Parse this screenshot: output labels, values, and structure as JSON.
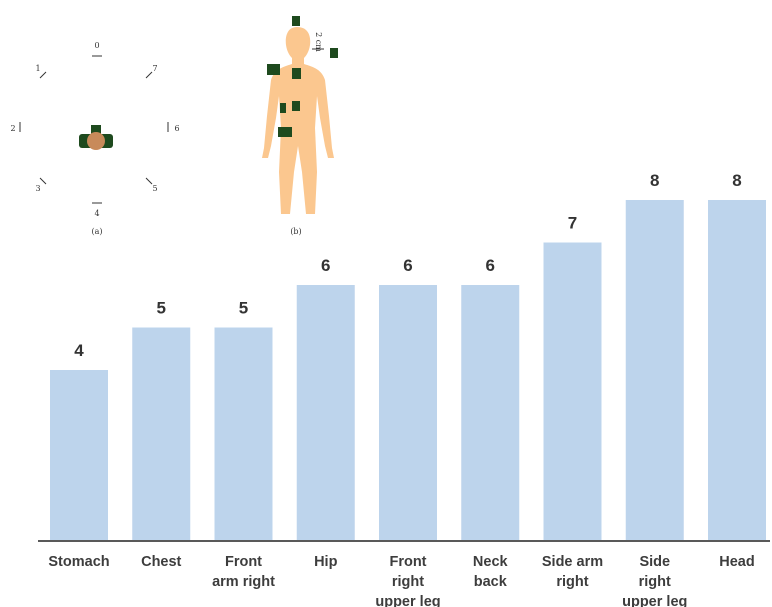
{
  "colors": {
    "bar": "#bdd4ec",
    "axis": "#222222",
    "value_text": "#333333",
    "category_text": "#3d3d3d",
    "skin": "#fbc78f",
    "sensor": "#1e4a1e",
    "head_disc": "#c88a5a"
  },
  "inset_a": {
    "caption": "(a)",
    "directions": [
      "0",
      "1",
      "2",
      "3",
      "4",
      "5",
      "6",
      "7"
    ]
  },
  "inset_b": {
    "caption": "(b)",
    "annotation": "2 cm"
  },
  "chart_data": {
    "type": "bar",
    "categories": [
      "Stomach",
      "Chest",
      "Front arm right",
      "Hip",
      "Front right upper leg",
      "Neck back",
      "Side arm right",
      "Side right upper leg",
      "Head"
    ],
    "category_lines": [
      [
        "Stomach"
      ],
      [
        "Chest"
      ],
      [
        "Front",
        "arm right"
      ],
      [
        "Hip"
      ],
      [
        "Front",
        "right",
        "upper leg"
      ],
      [
        "Neck",
        "back"
      ],
      [
        "Side arm",
        "right"
      ],
      [
        "Side",
        "right",
        "upper leg"
      ],
      [
        "Head"
      ]
    ],
    "values": [
      4,
      5,
      5,
      6,
      6,
      6,
      7,
      8,
      8
    ],
    "title": "",
    "xlabel": "",
    "ylabel": "",
    "ylim": [
      0,
      8
    ],
    "grid": false,
    "legend": "none"
  }
}
